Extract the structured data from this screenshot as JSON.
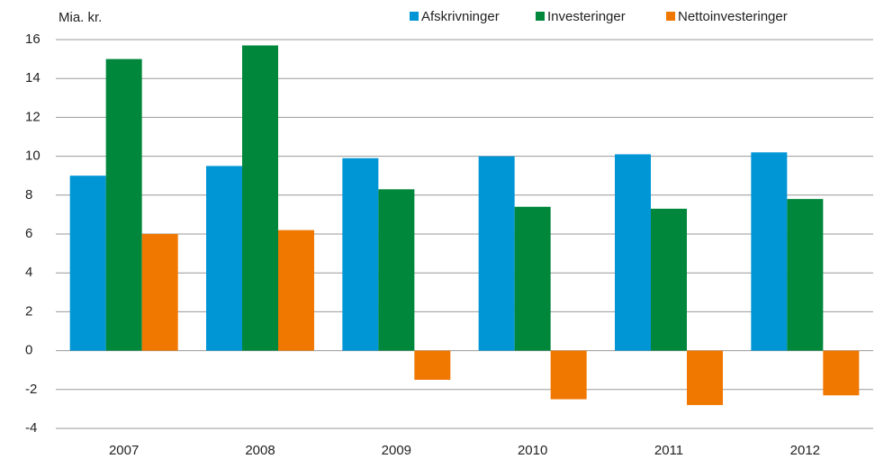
{
  "chart_data": {
    "type": "bar",
    "ylabel": "Mia. kr.",
    "categories": [
      "2007",
      "2008",
      "2009",
      "2010",
      "2011",
      "2012"
    ],
    "series": [
      {
        "name": "Afskrivninger",
        "color": "#0096d6",
        "values": [
          9.0,
          9.5,
          9.9,
          10.0,
          10.1,
          10.2
        ]
      },
      {
        "name": "Investeringer",
        "color": "#00873c",
        "values": [
          15.0,
          15.7,
          8.3,
          7.4,
          7.3,
          7.8
        ]
      },
      {
        "name": "Nettoinvesteringer",
        "color": "#f07800",
        "values": [
          6.0,
          6.2,
          -1.5,
          -2.5,
          -2.8,
          -2.3
        ]
      }
    ],
    "ylim": [
      -4,
      16
    ],
    "yticks": [
      -4,
      -2,
      0,
      2,
      4,
      6,
      8,
      10,
      12,
      14,
      16
    ],
    "grid": true,
    "legend": "top"
  }
}
